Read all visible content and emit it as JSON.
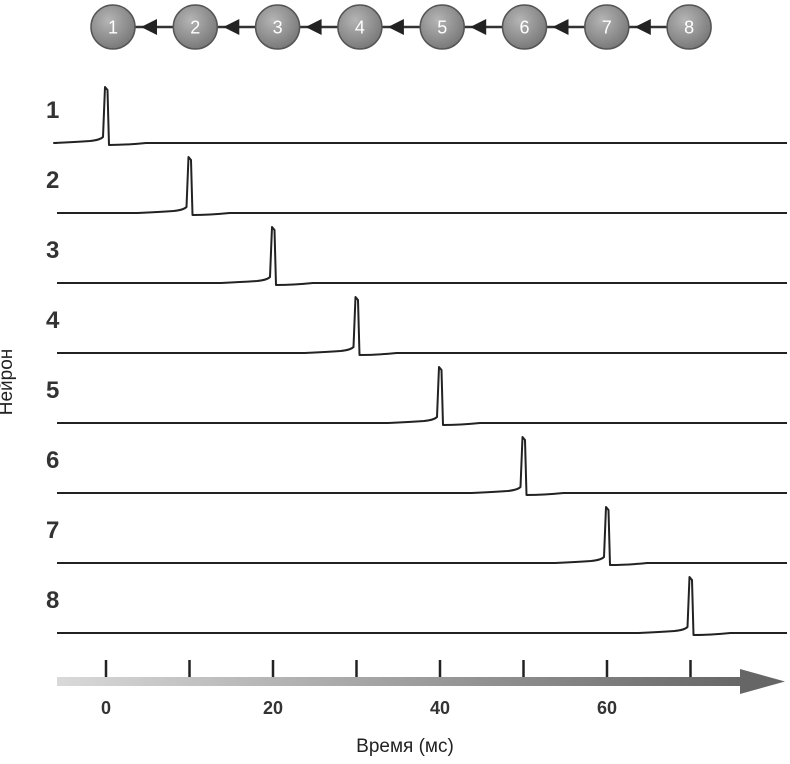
{
  "chart_data": {
    "type": "line",
    "title": "",
    "xlabel": "Время (мс)",
    "ylabel": "Нейрон",
    "xlim": [
      -6,
      80
    ],
    "x_ticks": [
      0,
      10,
      20,
      30,
      40,
      50,
      60,
      70
    ],
    "x_tick_labels": [
      "0",
      "",
      "20",
      "",
      "40",
      "",
      "60",
      ""
    ],
    "chain": {
      "nodes": [
        "1",
        "2",
        "3",
        "4",
        "5",
        "6",
        "7",
        "8"
      ],
      "node_color": "#8e8e8e",
      "connector": "inhibitory-arrow-left"
    },
    "series": [
      {
        "name": "1",
        "spike_time": 0
      },
      {
        "name": "2",
        "spike_time": 10
      },
      {
        "name": "3",
        "spike_time": 20
      },
      {
        "name": "4",
        "spike_time": 30
      },
      {
        "name": "5",
        "spike_time": 40
      },
      {
        "name": "6",
        "spike_time": 50
      },
      {
        "name": "7",
        "spike_time": 60
      },
      {
        "name": "8",
        "spike_time": 70
      }
    ],
    "colors": {
      "trace": "#222222",
      "axis_start": "#d9d9d9",
      "axis_end": "#666666",
      "tick": "#222222"
    }
  }
}
